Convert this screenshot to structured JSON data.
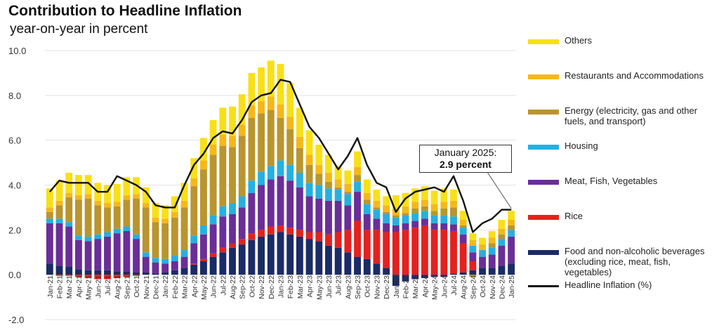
{
  "header": {
    "title": "Contribution to Headline Inflation",
    "subtitle": "year-on-year in percent"
  },
  "callout": {
    "line1": "January 2025:",
    "line2": "2.9 percent"
  },
  "colors": {
    "others": "#f7e018",
    "restaurants": "#f6b818",
    "energy": "#b9952e",
    "housing": "#25b0e0",
    "meat": "#6a2e98",
    "rice": "#e4211f",
    "food": "#1a2b66",
    "headline": "#111111"
  },
  "chart_data": {
    "type": "bar",
    "stacked": true,
    "yticks": [
      "10.0",
      "8.0",
      "6.0",
      "4.0",
      "2.0",
      "0.0",
      "-2.0"
    ],
    "ylim": [
      -2,
      10
    ],
    "categories": [
      "Jan-21",
      "Feb-21",
      "Mar-21",
      "Apr-21",
      "May-21",
      "Jun-21",
      "Jul-21",
      "Aug-21",
      "Sep-21",
      "Oct-21",
      "Nov-21",
      "Dec-21",
      "Jan-22",
      "Feb-22",
      "Mar-22",
      "Apr-22",
      "May-22",
      "Jun-22",
      "Jul-22",
      "Aug-22",
      "Sep-22",
      "Oct-22",
      "Nov-22",
      "Dec-22",
      "Jan-23",
      "Feb-23",
      "Mar-23",
      "Apr-23",
      "May-23",
      "Jun-23",
      "Jul-23",
      "Aug-23",
      "Sep-23",
      "Oct-23",
      "Nov-23",
      "Dec-23",
      "Jan-24",
      "Feb-24",
      "Mar-24",
      "Apr-24",
      "May-24",
      "Jun-24",
      "Jul-24",
      "Aug-24",
      "Sep-24",
      "Oct-24",
      "Nov-24",
      "Dec-24",
      "Jan-25"
    ],
    "series": [
      {
        "name": "Others",
        "key": "others",
        "values": [
          0.85,
          0.9,
          0.9,
          0.9,
          0.85,
          0.8,
          0.8,
          0.8,
          0.8,
          0.75,
          0.7,
          0.65,
          0.6,
          0.7,
          0.8,
          0.9,
          1.0,
          1.1,
          1.2,
          1.3,
          1.35,
          1.45,
          1.5,
          1.6,
          1.8,
          1.5,
          1.3,
          1.1,
          0.9,
          0.8,
          0.6,
          0.6,
          0.7,
          0.6,
          0.5,
          0.4,
          0.6,
          0.6,
          0.6,
          0.6,
          0.6,
          0.6,
          0.5,
          0.4,
          0.3,
          0.3,
          0.3,
          0.4,
          0.4
        ]
      },
      {
        "name": "Restaurants and Accommodations",
        "key": "restaurants",
        "values": [
          0.2,
          0.2,
          0.2,
          0.2,
          0.2,
          0.2,
          0.2,
          0.2,
          0.2,
          0.2,
          0.2,
          0.2,
          0.2,
          0.25,
          0.3,
          0.35,
          0.4,
          0.45,
          0.5,
          0.5,
          0.5,
          0.55,
          0.55,
          0.6,
          0.6,
          0.55,
          0.5,
          0.45,
          0.4,
          0.4,
          0.35,
          0.35,
          0.35,
          0.3,
          0.3,
          0.3,
          0.3,
          0.3,
          0.3,
          0.3,
          0.3,
          0.3,
          0.3,
          0.25,
          0.25,
          0.25,
          0.25,
          0.25,
          0.25
        ]
      },
      {
        "name": "Energy (electricity, gas and other fuels, and transport)",
        "key": "energy",
        "values": [
          0.3,
          0.6,
          1.1,
          1.6,
          1.7,
          1.3,
          1.1,
          1.0,
          1.2,
          1.6,
          2.0,
          1.6,
          1.6,
          1.7,
          1.9,
          2.2,
          2.5,
          2.7,
          2.7,
          2.5,
          2.7,
          2.8,
          2.6,
          2.5,
          1.9,
          1.6,
          1.1,
          0.8,
          0.5,
          0.3,
          0.1,
          0.1,
          0.3,
          0.2,
          0.1,
          0.1,
          0.1,
          0.1,
          0.2,
          0.2,
          0.2,
          0.3,
          0.4,
          0.1,
          -0.1,
          0.0,
          0.2,
          0.2,
          0.2
        ]
      },
      {
        "name": "Housing",
        "key": "housing",
        "values": [
          0.2,
          0.2,
          0.2,
          0.2,
          0.2,
          0.2,
          0.2,
          0.2,
          0.2,
          0.2,
          0.2,
          0.2,
          0.2,
          0.25,
          0.3,
          0.35,
          0.4,
          0.4,
          0.45,
          0.5,
          0.5,
          0.55,
          0.6,
          0.6,
          0.7,
          0.7,
          0.65,
          0.6,
          0.6,
          0.55,
          0.5,
          0.5,
          0.45,
          0.45,
          0.4,
          0.4,
          0.35,
          0.35,
          0.35,
          0.35,
          0.35,
          0.35,
          0.35,
          0.3,
          0.3,
          0.3,
          0.3,
          0.3,
          0.3
        ]
      },
      {
        "name": "Meat, Fish, Vegetables",
        "key": "meat",
        "values": [
          1.8,
          1.9,
          1.8,
          1.3,
          1.3,
          1.4,
          1.5,
          1.7,
          1.8,
          1.5,
          0.7,
          0.5,
          0.4,
          0.4,
          0.5,
          0.9,
          1.1,
          1.3,
          1.4,
          1.3,
          1.4,
          1.8,
          2.0,
          2.1,
          2.2,
          2.1,
          1.9,
          1.6,
          1.5,
          1.5,
          1.4,
          1.1,
          1.3,
          0.7,
          0.5,
          0.4,
          0.3,
          0.3,
          0.3,
          0.3,
          0.3,
          0.3,
          0.3,
          0.4,
          0.4,
          0.5,
          0.6,
          0.9,
          1.2
        ]
      },
      {
        "name": "Rice",
        "key": "rice",
        "values": [
          0.0,
          -0.05,
          -0.05,
          -0.1,
          -0.15,
          -0.2,
          -0.2,
          -0.15,
          -0.1,
          -0.05,
          0.0,
          0.0,
          0.0,
          0.0,
          0.0,
          0.05,
          0.1,
          0.15,
          0.2,
          0.2,
          0.25,
          0.3,
          0.3,
          0.35,
          0.3,
          0.3,
          0.3,
          0.3,
          0.4,
          0.5,
          0.7,
          1.0,
          1.6,
          1.3,
          1.5,
          1.6,
          1.9,
          2.0,
          2.1,
          2.2,
          2.0,
          2.0,
          1.9,
          1.3,
          0.4,
          0.0,
          0.0,
          0.0,
          0.0
        ]
      },
      {
        "name": "Food and non-alcoholic beverages (excluding rice, meat, fish, vegetables)",
        "key": "food",
        "values": [
          0.5,
          0.4,
          0.35,
          0.25,
          0.2,
          0.2,
          0.2,
          0.15,
          0.15,
          0.1,
          0.1,
          0.05,
          0.1,
          0.2,
          0.3,
          0.45,
          0.6,
          0.8,
          1.0,
          1.2,
          1.35,
          1.55,
          1.7,
          1.8,
          1.9,
          1.8,
          1.7,
          1.6,
          1.5,
          1.3,
          1.2,
          1.0,
          0.8,
          0.7,
          0.5,
          0.3,
          -0.5,
          -0.3,
          -0.2,
          -0.15,
          -0.1,
          -0.1,
          0.05,
          0.1,
          0.2,
          0.3,
          0.3,
          0.4,
          0.5
        ]
      }
    ],
    "line": {
      "name": "Headline Inflation (%)",
      "values": [
        3.7,
        4.2,
        4.1,
        4.1,
        4.1,
        3.7,
        3.7,
        4.4,
        4.2,
        4.0,
        3.7,
        3.1,
        3.0,
        3.0,
        4.0,
        4.9,
        5.4,
        6.1,
        6.4,
        6.3,
        6.9,
        7.7,
        8.0,
        8.1,
        8.7,
        8.6,
        7.6,
        6.6,
        6.1,
        5.4,
        4.7,
        5.3,
        6.1,
        4.9,
        4.1,
        3.9,
        2.8,
        3.4,
        3.7,
        3.8,
        3.9,
        3.7,
        4.4,
        3.3,
        1.9,
        2.3,
        2.5,
        2.9,
        2.9
      ]
    },
    "legend_labels": [
      "Others",
      "Restaurants and Accommodations",
      "Energy (electricity, gas and other fuels, and transport)",
      "Housing",
      "Meat, Fish, Vegetables",
      "Rice",
      "Food and non-alcoholic beverages (excluding rice, meat, fish, vegetables)",
      "Headline Inflation (%)"
    ],
    "legend_placement": "right",
    "grid": true
  }
}
